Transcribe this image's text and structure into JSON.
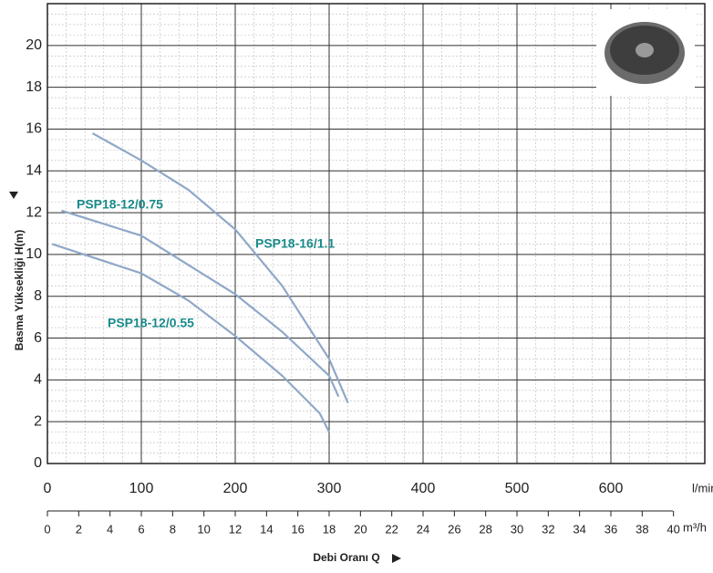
{
  "chart_data": {
    "type": "line",
    "x_label": "Debi Oranı Q",
    "y_label": "Basma Yüksekliği H(m)",
    "x_unit": "l/min",
    "x2_unit": "m³/h",
    "xlim": [
      0,
      700
    ],
    "xticks": [
      0,
      100,
      200,
      300,
      400,
      500,
      600
    ],
    "x2lim": [
      0,
      42
    ],
    "x2ticks": [
      0,
      2,
      4,
      6,
      8,
      10,
      12,
      14,
      16,
      18,
      20,
      22,
      24,
      26,
      28,
      30,
      32,
      34,
      36,
      38,
      40
    ],
    "ylim": [
      0,
      22
    ],
    "yticks": [
      0,
      2,
      4,
      6,
      8,
      10,
      12,
      14,
      16,
      18,
      20
    ],
    "grid": true,
    "series": [
      {
        "name": "PSP18-16/1.1",
        "color": "#8fa8c8",
        "x": [
          48,
          100,
          150,
          200,
          250,
          300,
          320
        ],
        "values": [
          15.8,
          14.5,
          13.1,
          11.2,
          8.5,
          5.0,
          2.9
        ]
      },
      {
        "name": "PSP18-12/0.75",
        "color": "#8fa8c8",
        "x": [
          15,
          100,
          150,
          200,
          250,
          300,
          310
        ],
        "values": [
          12.1,
          10.9,
          9.5,
          8.1,
          6.3,
          4.2,
          3.2
        ]
      },
      {
        "name": "PSP18-12/0.55",
        "color": "#8fa8c8",
        "x": [
          5,
          100,
          150,
          200,
          250,
          290,
          300
        ],
        "values": [
          10.5,
          9.1,
          7.8,
          6.1,
          4.2,
          2.4,
          1.5
        ]
      }
    ]
  }
}
